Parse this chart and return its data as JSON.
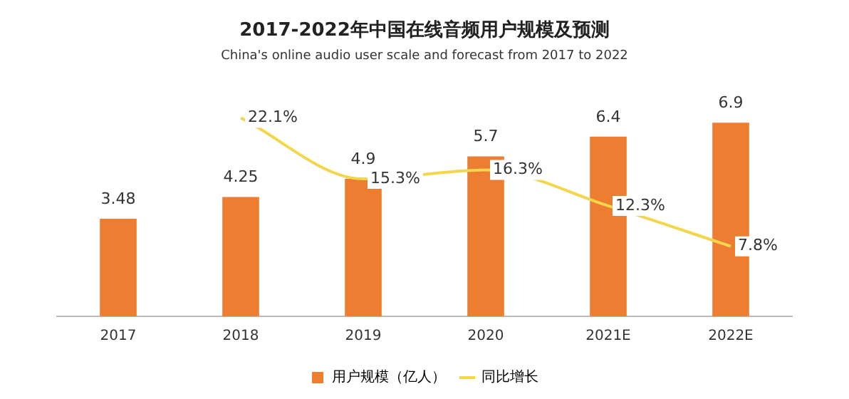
{
  "chart_data": {
    "type": "bar",
    "title": "2017-2022年中国在线音频用户规模及预测",
    "subtitle": "China's online audio user scale and forecast from 2017 to 2022",
    "categories": [
      "2017",
      "2018",
      "2019",
      "2020",
      "2021E",
      "2022E"
    ],
    "series": [
      {
        "name": "用户规模（亿人）",
        "color": "#ed7d31",
        "values": [
          3.48,
          4.25,
          4.9,
          5.7,
          6.4,
          6.9
        ]
      },
      {
        "name": "同比增长",
        "type": "line",
        "axis": "y2",
        "color": "#f2d64b",
        "values": [
          null,
          22.1,
          15.3,
          16.3,
          12.3,
          7.8
        ],
        "value_labels": [
          null,
          "22.1%",
          "15.3%",
          "16.3%",
          "12.3%",
          "7.8%"
        ]
      }
    ],
    "data_labels": true,
    "legend": "bottom",
    "grid": false,
    "tick_labels": "x",
    "marker": "none"
  }
}
